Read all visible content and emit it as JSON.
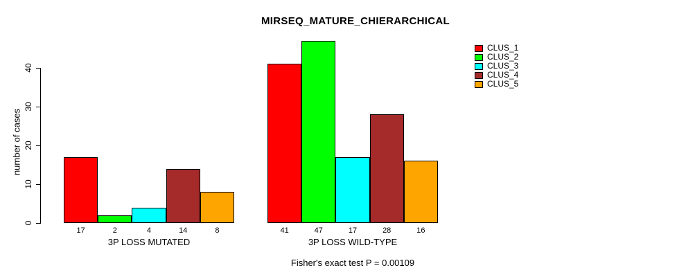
{
  "figure": {
    "background": "#FFFFFF",
    "text_color": "#000000"
  },
  "chart_data": {
    "type": "bar",
    "title": "MIRSEQ_MATURE_CHIERARCHICAL",
    "xlabel": "",
    "ylabel": "number of cases",
    "ylim": [
      0,
      47
    ],
    "yticks": [
      0,
      10,
      20,
      30,
      40
    ],
    "grid": false,
    "legend_position": "right-outside-top",
    "categories": [
      "3P LOSS MUTATED",
      "3P LOSS WILD-TYPE"
    ],
    "groups": [
      {
        "label": "3P LOSS MUTATED",
        "values": [
          17,
          2,
          4,
          14,
          8
        ]
      },
      {
        "label": "3P LOSS WILD-TYPE",
        "values": [
          41,
          47,
          17,
          28,
          16
        ]
      }
    ],
    "series": [
      {
        "name": "CLUS_1",
        "color": "#FF0000",
        "values": [
          17,
          41
        ]
      },
      {
        "name": "CLUS_2",
        "color": "#00FF00",
        "values": [
          2,
          47
        ]
      },
      {
        "name": "CLUS_3",
        "color": "#00FFFF",
        "values": [
          4,
          17
        ]
      },
      {
        "name": "CLUS_4",
        "color": "#A52A2A",
        "values": [
          14,
          28
        ]
      },
      {
        "name": "CLUS_5",
        "color": "#FFA500",
        "values": [
          8,
          16
        ]
      }
    ],
    "annotation": "Fisher's exact test P = 0.00109"
  }
}
